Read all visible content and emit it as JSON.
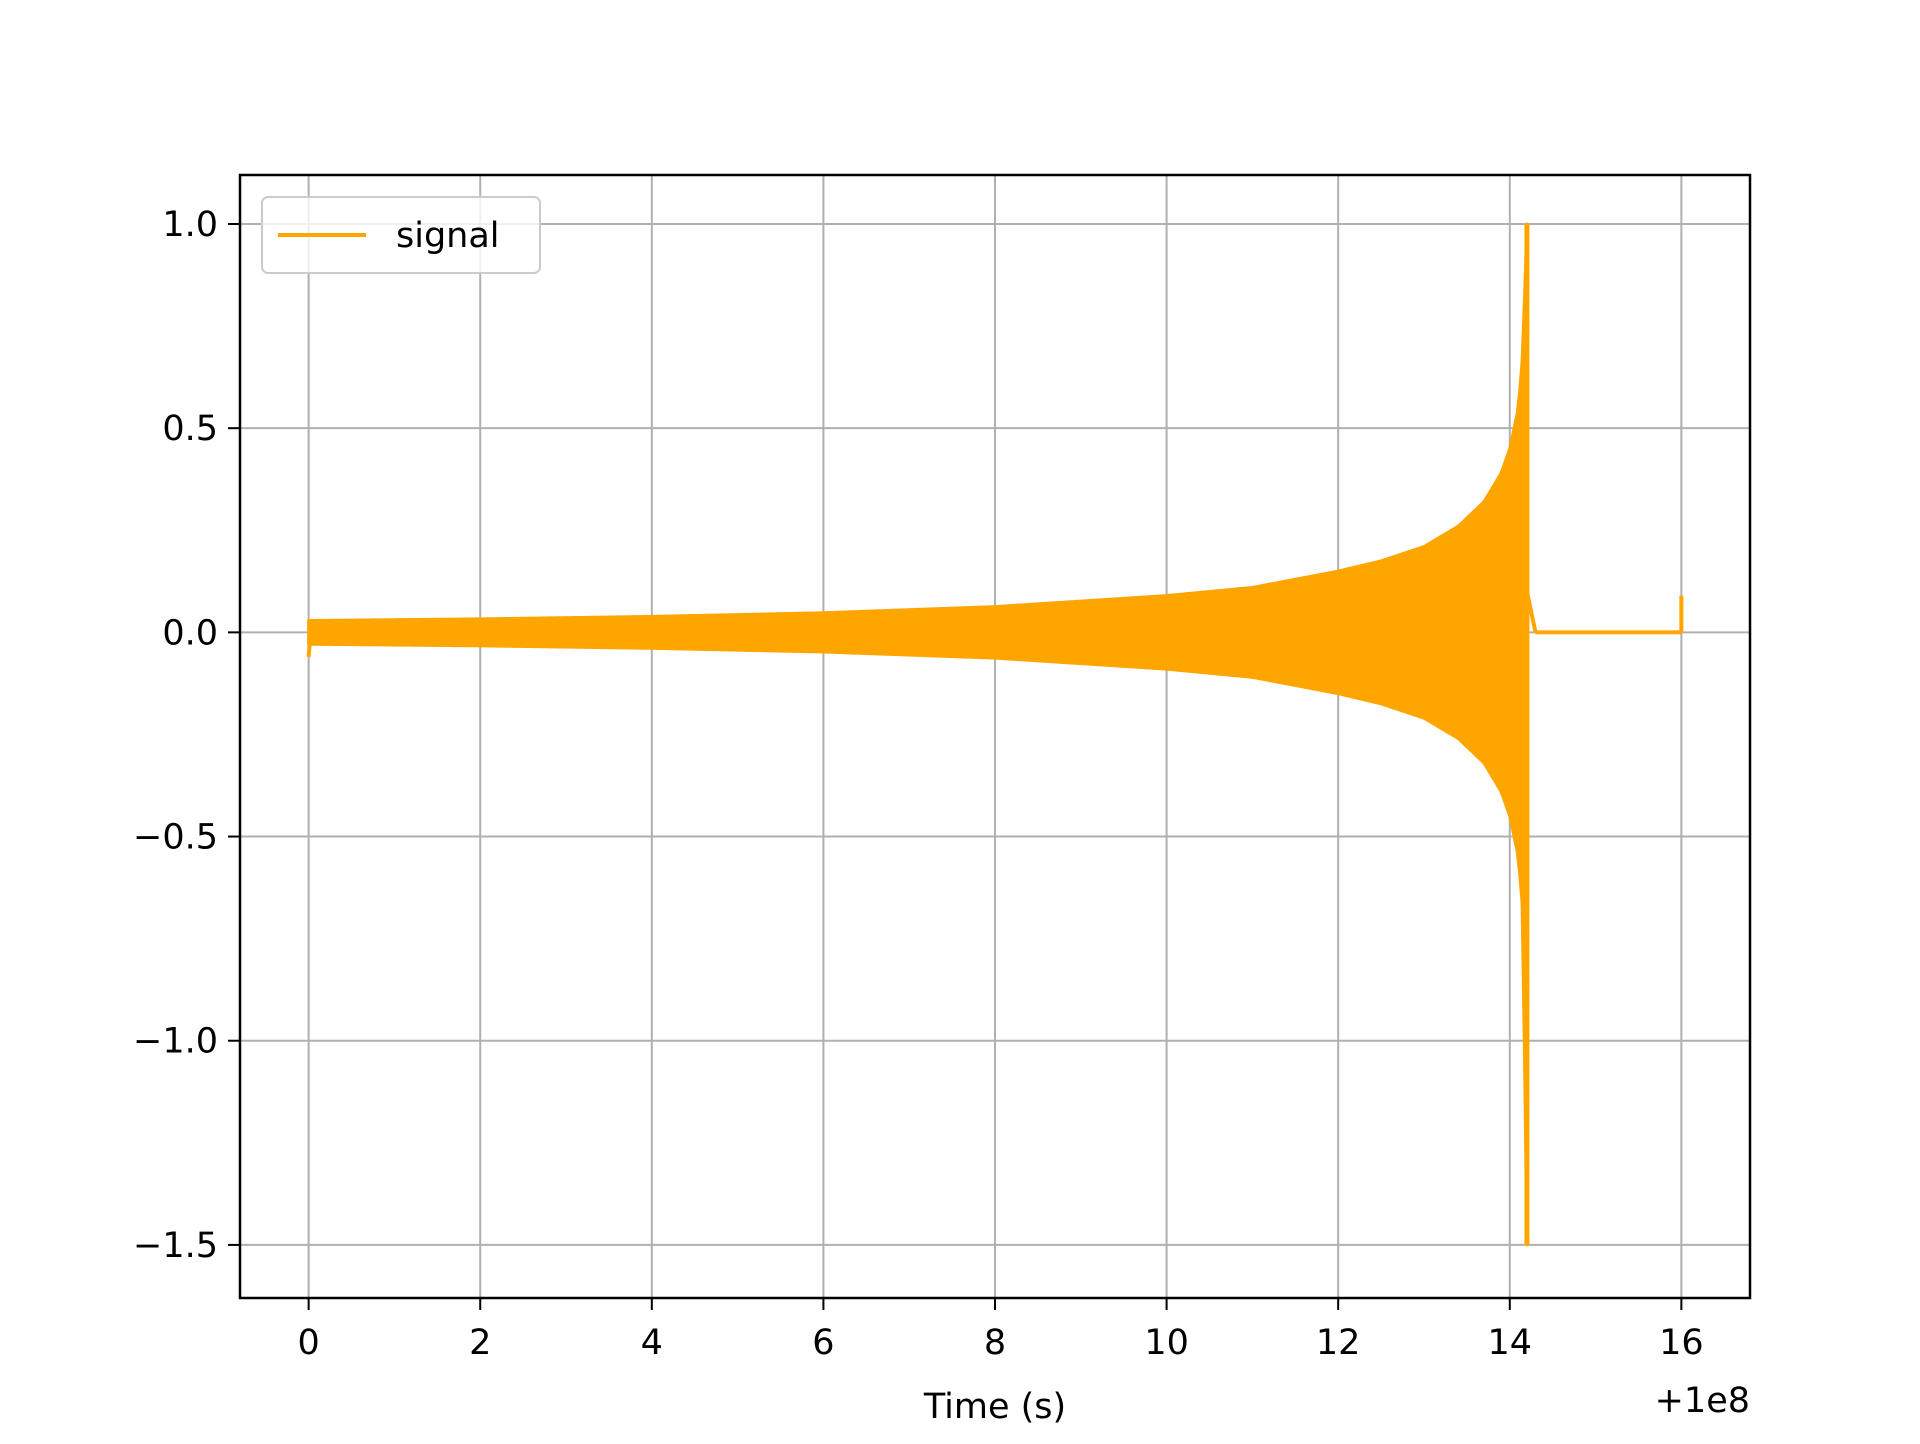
{
  "chart_data": {
    "type": "line",
    "title": "",
    "xlabel": "Time (s)",
    "ylabel": "",
    "x_offset_label": "+1e8",
    "xlim": [
      -0.8,
      16.8
    ],
    "ylim": [
      -1.63,
      1.12
    ],
    "xticks": [
      0,
      2,
      4,
      6,
      8,
      10,
      12,
      14,
      16
    ],
    "xtick_labels": [
      "0",
      "2",
      "4",
      "6",
      "8",
      "10",
      "12",
      "14",
      "16"
    ],
    "yticks": [
      1.0,
      0.5,
      0.0,
      -0.5,
      -1.0,
      -1.5
    ],
    "ytick_labels": [
      "1.0",
      "0.5",
      "0.0",
      "−0.5",
      "−1.0",
      "−1.5"
    ],
    "grid": true,
    "legend_position": "upper-left",
    "series": [
      {
        "name": "signal",
        "color": "#FFA500",
        "envelope": {
          "x": [
            0.0,
            2.0,
            4.0,
            6.0,
            8.0,
            10.0,
            11.0,
            12.0,
            12.5,
            13.0,
            13.4,
            13.7,
            13.9,
            14.0,
            14.1,
            14.15,
            14.2
          ],
          "upper": [
            0.029,
            0.033,
            0.039,
            0.048,
            0.063,
            0.09,
            0.11,
            0.15,
            0.175,
            0.21,
            0.26,
            0.32,
            0.39,
            0.45,
            0.55,
            0.68,
            1.0
          ],
          "lower": [
            -0.029,
            -0.033,
            -0.039,
            -0.048,
            -0.063,
            -0.09,
            -0.11,
            -0.15,
            -0.175,
            -0.21,
            -0.26,
            -0.32,
            -0.39,
            -0.45,
            -0.55,
            -0.68,
            -1.5
          ]
        },
        "start": {
          "x": 0.0,
          "y": -0.06
        },
        "peak": {
          "x": 14.2,
          "y": 1.0
        },
        "trough": {
          "x": 14.2,
          "y": -1.5
        },
        "ringdown_end_x": 14.3,
        "flat_segment": {
          "x": [
            14.3,
            16.0
          ],
          "y": 0.0
        },
        "end_spike": {
          "x": 16.0,
          "y": 0.09
        }
      }
    ]
  }
}
